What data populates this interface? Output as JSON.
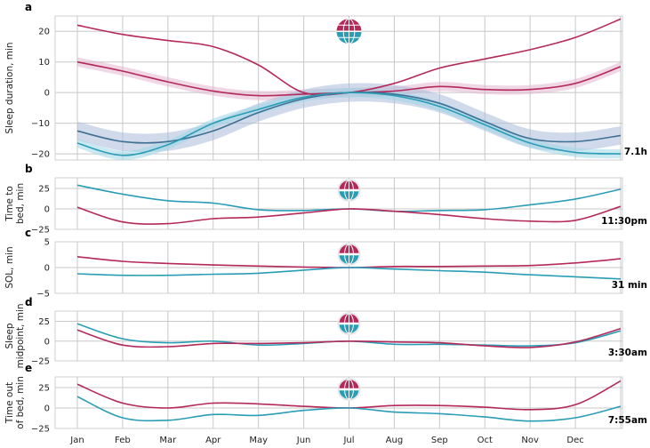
{
  "colors": {
    "crimson": "#b5285a",
    "crimson_band": "#e2b6cf",
    "teal": "#2a9db6",
    "teal_band": "#9fd7e5",
    "slate": "#3f6f93",
    "slate_band": "#a9bcd8",
    "globe_top": "#b5285a",
    "globe_bottom": "#2a9db6"
  },
  "chart_data": {
    "type": "line",
    "x_categories": [
      "Jan",
      "Feb",
      "Mar",
      "Apr",
      "May",
      "Jun",
      "Jul",
      "Aug",
      "Sep",
      "Oct",
      "Nov",
      "Dec"
    ],
    "x": [
      0,
      1,
      2,
      3,
      4,
      5,
      6,
      7,
      8,
      9,
      10,
      11,
      12
    ],
    "globe_icon_month": 6,
    "panels": [
      {
        "label": "a",
        "ylabel": "Sleep duration, min",
        "yticks": [
          -20,
          -10,
          0,
          10,
          20
        ],
        "ylim": [
          -22,
          25
        ],
        "baseline": "7.1h",
        "series": [
          {
            "name": "crimson-thin",
            "color_key": "crimson",
            "band": 0,
            "values": [
              22,
              19,
              17,
              15,
              9,
              0,
              0,
              3,
              8,
              11,
              14,
              18,
              24
            ]
          },
          {
            "name": "crimson-band",
            "color_key": "crimson",
            "band": 1.5,
            "values": [
              10,
              7,
              3.5,
              0.5,
              -1,
              -0.5,
              0,
              0.5,
              2,
              1,
              1,
              3,
              8.5
            ]
          },
          {
            "name": "slate-band",
            "color_key": "slate",
            "band": 3,
            "values": [
              -12.5,
              -16,
              -16,
              -12.5,
              -6.5,
              -2,
              0,
              -0.5,
              -3.5,
              -9.5,
              -15,
              -16,
              -14
            ]
          },
          {
            "name": "teal-band",
            "color_key": "teal",
            "band": 1.5,
            "values": [
              -16.5,
              -20.5,
              -17,
              -10,
              -5.5,
              -1.5,
              0,
              -1,
              -4.5,
              -10.5,
              -16.5,
              -19.5,
              -20
            ]
          }
        ]
      },
      {
        "label": "b",
        "ylabel": "Time to bed, min",
        "ylabel_lines": [
          "Time to",
          "bed, min"
        ],
        "yticks": [
          -25,
          0,
          25
        ],
        "ylim": [
          -25,
          38
        ],
        "baseline": "11:30pm",
        "series": [
          {
            "name": "teal",
            "color_key": "teal",
            "band": 0,
            "values": [
              29,
              18,
              10,
              7,
              -1,
              -2,
              0,
              -3,
              -2,
              -1,
              5,
              12,
              24
            ]
          },
          {
            "name": "crimson",
            "color_key": "crimson",
            "band": 0,
            "values": [
              2,
              -16,
              -18,
              -12,
              -10,
              -5,
              0,
              -3,
              -7,
              -12,
              -15,
              -14,
              3
            ]
          }
        ]
      },
      {
        "label": "c",
        "ylabel": "SOL, min",
        "ylabel_lines": [
          "SOL, min"
        ],
        "yticks": [
          -5,
          0,
          5
        ],
        "ylim": [
          -5,
          5
        ],
        "baseline": "31 min",
        "series": [
          {
            "name": "crimson",
            "color_key": "crimson",
            "band": 0,
            "values": [
              2.1,
              1.2,
              0.8,
              0.5,
              0.3,
              0.1,
              0,
              0.2,
              0.2,
              0.3,
              0.4,
              0.9,
              1.7
            ]
          },
          {
            "name": "teal",
            "color_key": "teal",
            "band": 0,
            "values": [
              -1.2,
              -1.5,
              -1.5,
              -1.3,
              -1.1,
              -0.5,
              0,
              -0.3,
              -0.6,
              -0.9,
              -1.4,
              -1.8,
              -2.2
            ]
          }
        ]
      },
      {
        "label": "d",
        "ylabel": "Sleep midpoint, min",
        "ylabel_lines": [
          "Sleep",
          "midpoint, min"
        ],
        "yticks": [
          -25,
          0,
          25
        ],
        "ylim": [
          -25,
          38
        ],
        "baseline": "3:30am",
        "series": [
          {
            "name": "teal",
            "color_key": "teal",
            "band": 0,
            "values": [
              22,
              3,
              -2,
              0,
              -5,
              -3,
              0,
              -4,
              -4,
              -5,
              -6,
              -2,
              13
            ]
          },
          {
            "name": "crimson",
            "color_key": "crimson",
            "band": 0,
            "values": [
              14,
              -5,
              -7,
              -3,
              -3,
              -2,
              0,
              -1,
              -2,
              -6,
              -8,
              -1,
              16
            ]
          }
        ]
      },
      {
        "label": "e",
        "ylabel": "Time out of bed, min",
        "ylabel_lines": [
          "Time out",
          "of bed, min"
        ],
        "yticks": [
          -25,
          0,
          25
        ],
        "ylim": [
          -25,
          38
        ],
        "baseline": "7:55am",
        "series": [
          {
            "name": "crimson",
            "color_key": "crimson",
            "band": 0,
            "values": [
              29,
              6,
              0,
              6,
              5,
              2,
              0,
              3,
              3,
              1,
              -2,
              4,
              33
            ]
          },
          {
            "name": "teal",
            "color_key": "teal",
            "band": 0,
            "values": [
              14,
              -12,
              -15,
              -8,
              -9,
              -3,
              0,
              -5,
              -7,
              -11,
              -16,
              -12,
              2
            ]
          }
        ]
      }
    ]
  }
}
